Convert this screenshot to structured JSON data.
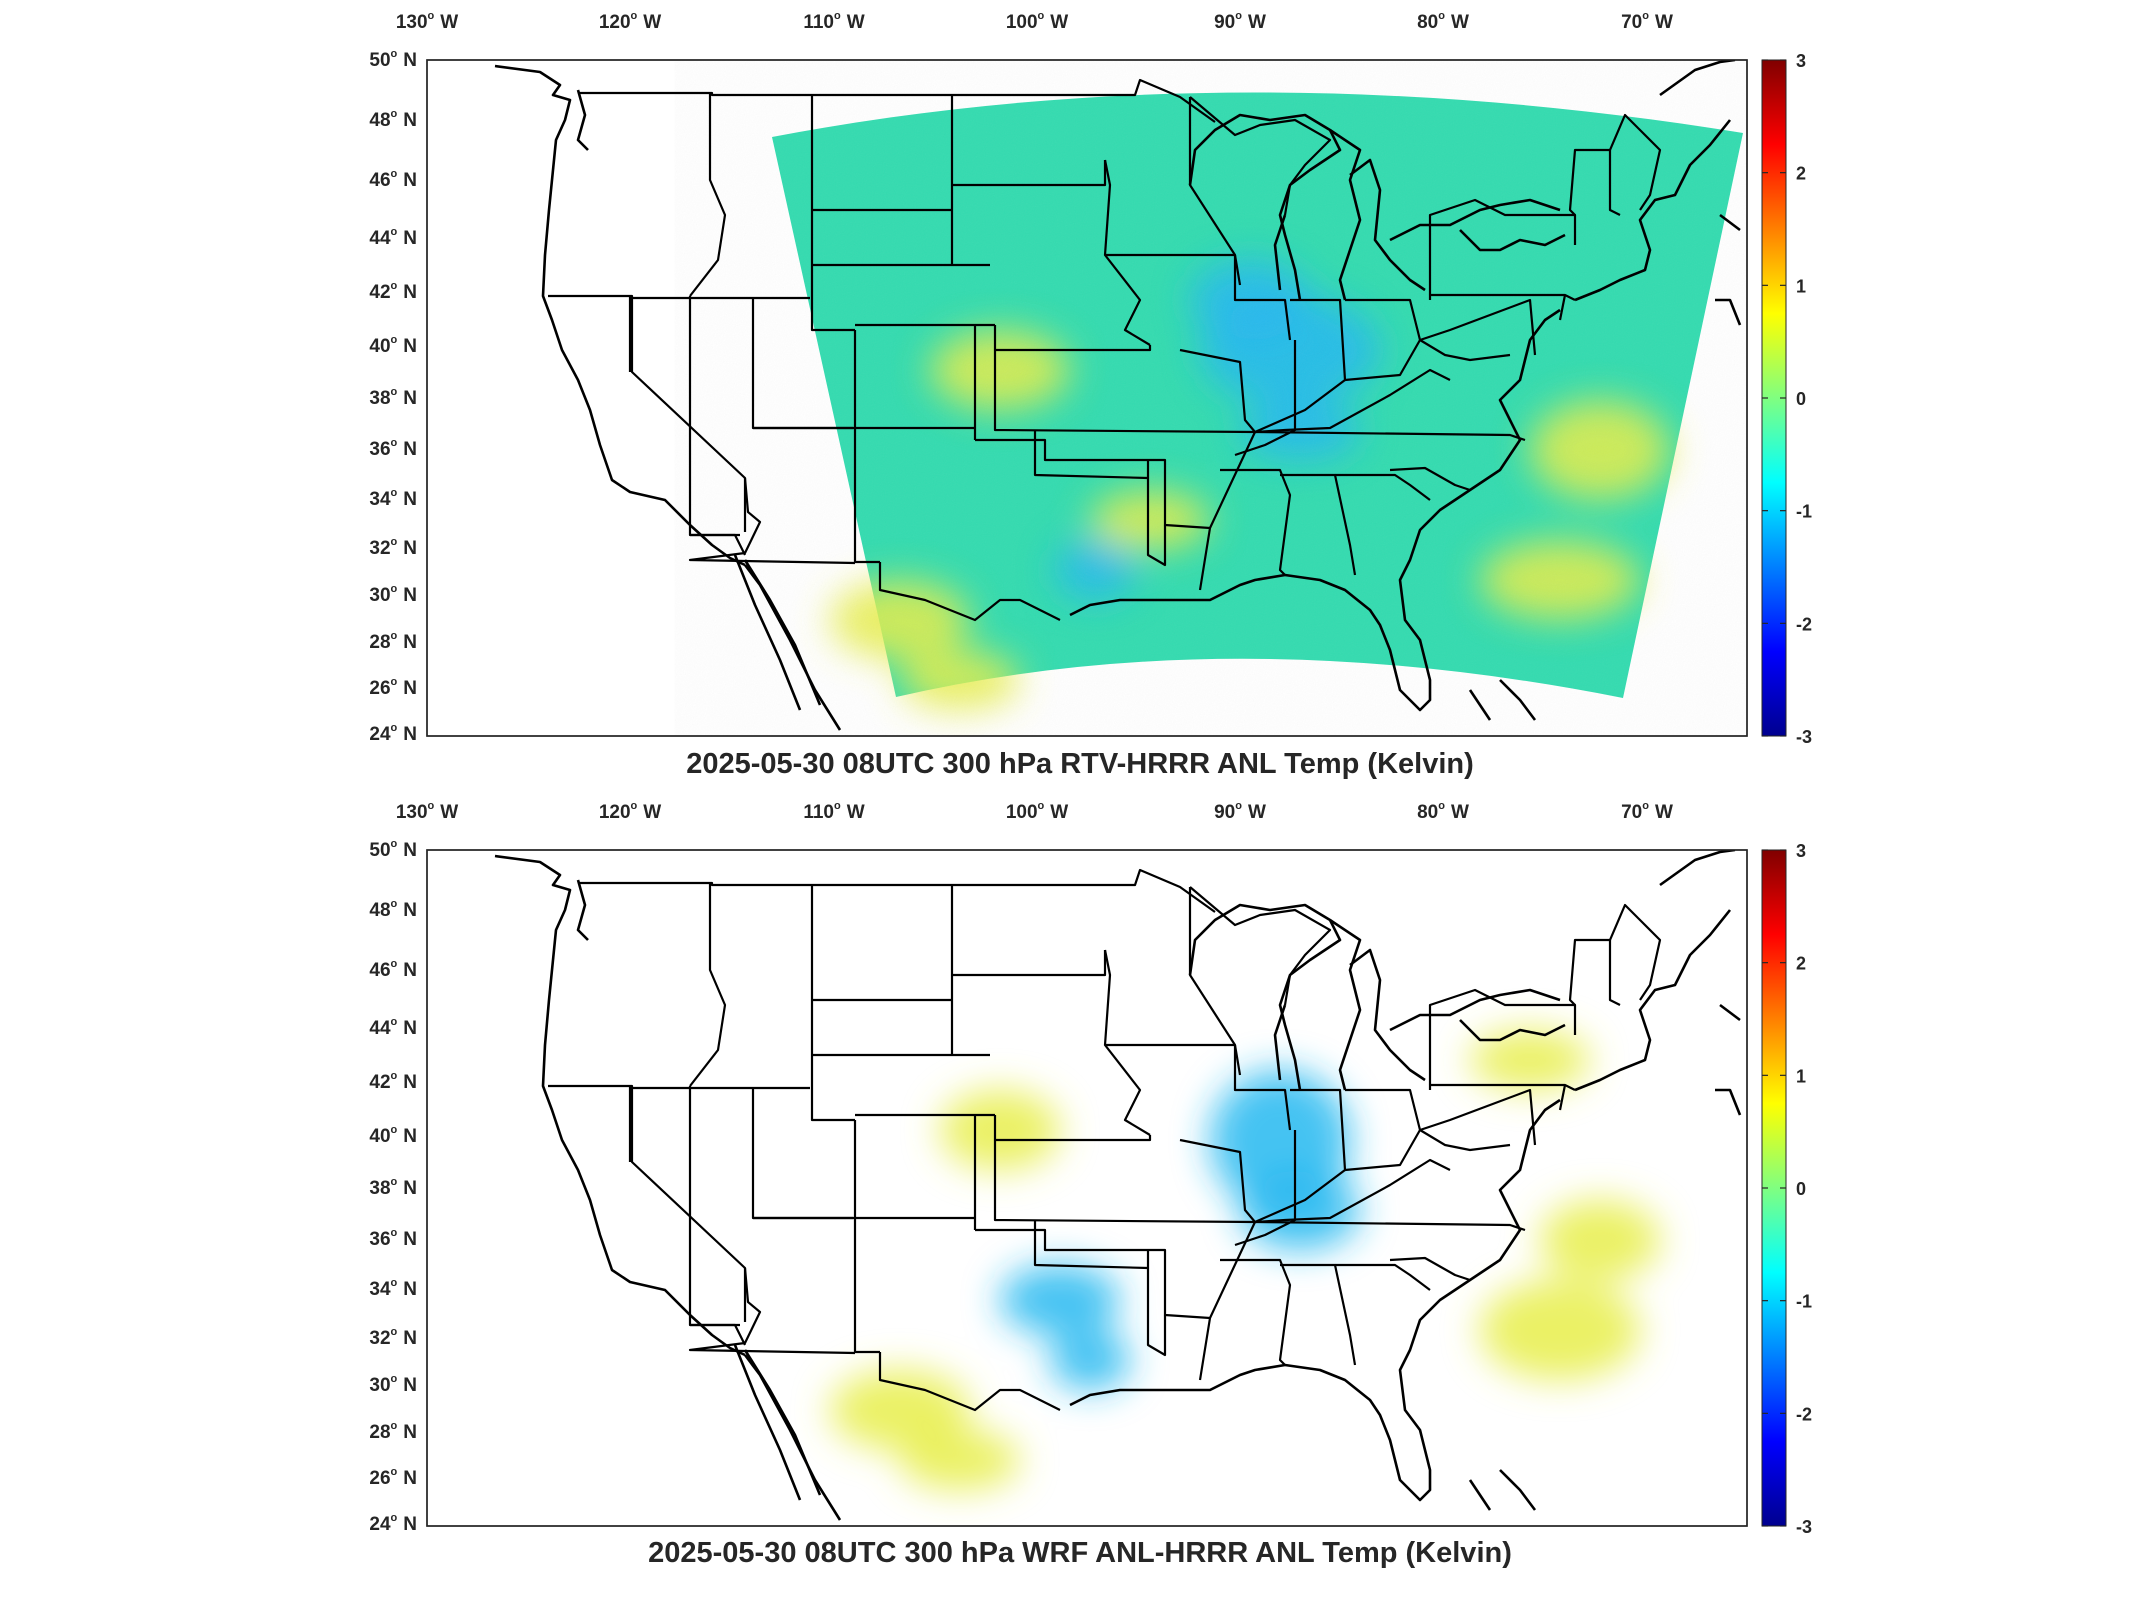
{
  "panels": [
    {
      "id": "top",
      "title": "2025-05-30 08UTC 300 hPa RTV-HRRR ANL Temp (Kelvin)",
      "cool_spots": [
        [
          1290,
          350,
          90,
          55
        ],
        [
          1250,
          300,
          60,
          40
        ],
        [
          1300,
          430,
          60,
          30
        ],
        [
          1095,
          570,
          40,
          30
        ]
      ],
      "warm_spots": [
        [
          900,
          620,
          70,
          40
        ],
        [
          960,
          680,
          60,
          30
        ],
        [
          1600,
          450,
          70,
          50
        ],
        [
          1560,
          580,
          80,
          40
        ],
        [
          1000,
          370,
          70,
          40
        ],
        [
          1150,
          520,
          60,
          30
        ]
      ]
    },
    {
      "id": "bottom",
      "title": "2025-05-30 08UTC 300 hPa WRF ANL-HRRR ANL Temp (Kelvin)",
      "cool_spots": [
        [
          1280,
          1140,
          70,
          70
        ],
        [
          1300,
          1210,
          60,
          40
        ],
        [
          1090,
          1360,
          40,
          30
        ],
        [
          1060,
          1300,
          60,
          35
        ]
      ],
      "warm_spots": [
        [
          900,
          1410,
          70,
          40
        ],
        [
          960,
          1460,
          60,
          30
        ],
        [
          1600,
          1240,
          60,
          40
        ],
        [
          1560,
          1330,
          80,
          50
        ],
        [
          1000,
          1130,
          60,
          40
        ],
        [
          1530,
          1060,
          60,
          30
        ]
      ]
    }
  ],
  "lon_ticks": [
    {
      "deg": "130",
      "hem": "W"
    },
    {
      "deg": "120",
      "hem": "W"
    },
    {
      "deg": "110",
      "hem": "W"
    },
    {
      "deg": "100",
      "hem": "W"
    },
    {
      "deg": "90",
      "hem": "W"
    },
    {
      "deg": "80",
      "hem": "W"
    },
    {
      "deg": "70",
      "hem": "W"
    }
  ],
  "lat_ticks": [
    {
      "deg": "50",
      "hem": "N"
    },
    {
      "deg": "48",
      "hem": "N"
    },
    {
      "deg": "46",
      "hem": "N"
    },
    {
      "deg": "44",
      "hem": "N"
    },
    {
      "deg": "42",
      "hem": "N"
    },
    {
      "deg": "40",
      "hem": "N"
    },
    {
      "deg": "38",
      "hem": "N"
    },
    {
      "deg": "36",
      "hem": "N"
    },
    {
      "deg": "34",
      "hem": "N"
    },
    {
      "deg": "32",
      "hem": "N"
    },
    {
      "deg": "30",
      "hem": "N"
    },
    {
      "deg": "28",
      "hem": "N"
    },
    {
      "deg": "26",
      "hem": "N"
    },
    {
      "deg": "24",
      "hem": "N"
    }
  ],
  "colorbar": {
    "range": [
      -3,
      3
    ],
    "ticks": [
      "3",
      "2",
      "1",
      "0",
      "-1",
      "-2",
      "-3"
    ],
    "colormap": "jet",
    "colors": [
      "#00008f",
      "#0000ff",
      "#00ffff",
      "#80ff80",
      "#ffff00",
      "#ff0000",
      "#800000"
    ]
  },
  "field_colors": {
    "base": "#33dcb0",
    "cool": "#27b9f0",
    "warm": "#e8ee4a",
    "hot": "#f09a2e"
  }
}
